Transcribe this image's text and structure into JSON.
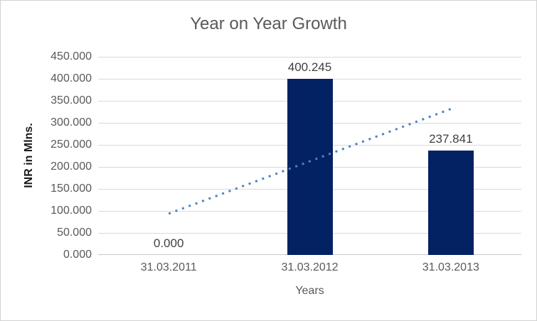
{
  "chart_data": {
    "type": "bar",
    "title": "Year on Year Growth",
    "xlabel": "Years",
    "ylabel": "INR in Mlns.",
    "categories": [
      "31.03.2011",
      "31.03.2012",
      "31.03.2013"
    ],
    "values": [
      0,
      400.245,
      237.841
    ],
    "data_labels": [
      "0.000",
      "400.245",
      "237.841"
    ],
    "y_ticks": [
      "450.000",
      "400.000",
      "350.000",
      "300.000",
      "250.000",
      "200.000",
      "150.000",
      "100.000",
      "50.000",
      "0.000"
    ],
    "ylim": [
      0,
      450
    ],
    "grid": true,
    "legend": "none",
    "bar_color": "#032263",
    "trendline": {
      "type": "linear",
      "style": "dotted",
      "color": "#4d82c4",
      "start_value": 93.8,
      "end_value": 331.6
    }
  },
  "colors": {
    "background": "#ffffff",
    "border": "#d2d2d2",
    "gridline": "#dadada",
    "axis_line": "#c9c9c9",
    "title_text": "#595959",
    "tick_text": "#595959",
    "data_label_text": "#404040",
    "y_axis_title_text": "#1a1a1a"
  }
}
